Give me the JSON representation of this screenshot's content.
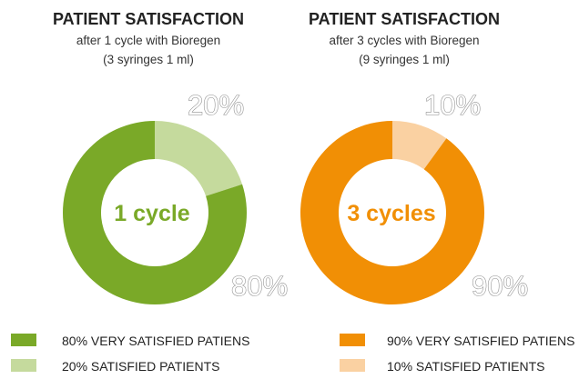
{
  "chart_data": [
    {
      "type": "pie",
      "title": "PATIENT SATISFACTION",
      "subtitle_lines": [
        "after 1 cycle with Bioregen",
        "(3 syringes 1 ml)"
      ],
      "center_label": "1 cycle",
      "accent_color": "#7aa928",
      "slices": [
        {
          "label": "80% VERY SATISFIED PATIENS",
          "value": 80,
          "display": "80%",
          "color": "#7aa928"
        },
        {
          "label": "20% SATISFIED PATIENTS",
          "value": 20,
          "display": "20%",
          "color": "#c5da9d"
        }
      ]
    },
    {
      "type": "pie",
      "title": "PATIENT SATISFACTION",
      "subtitle_lines": [
        "after 3 cycles with Bioregen",
        "(9 syringes 1 ml)"
      ],
      "center_label": "3 cycles",
      "accent_color": "#f18f05",
      "slices": [
        {
          "label": "90% VERY SATISFIED PATIENS",
          "value": 90,
          "display": "90%",
          "color": "#f18f05"
        },
        {
          "label": "10% SATISFIED PATIENTS",
          "value": 10,
          "display": "10%",
          "color": "#fad1a2"
        }
      ]
    }
  ]
}
